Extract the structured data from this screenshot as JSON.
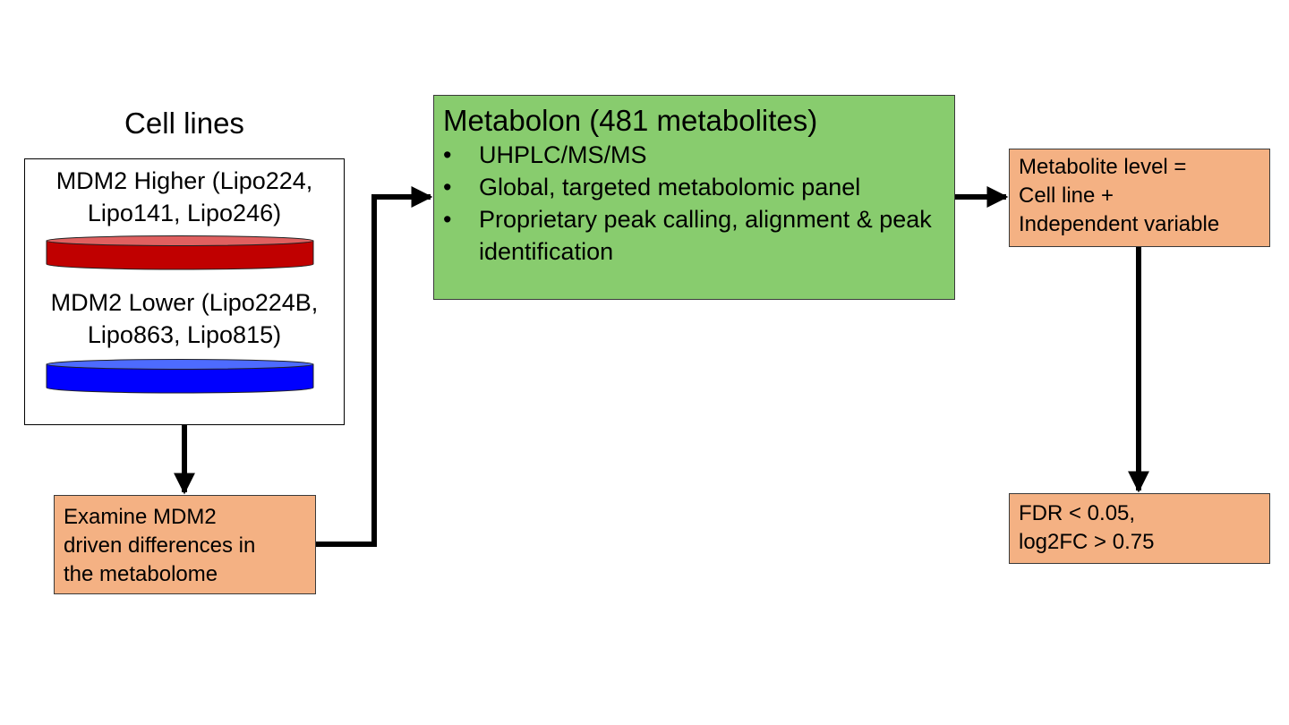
{
  "cell_lines": {
    "title": "Cell lines",
    "higher_label": "MDM2 Higher (Lipo224,\nLipo141, Lipo246)",
    "lower_label": "MDM2 Lower (Lipo224B,\nLipo863, Lipo815)",
    "higher_color": "#c00000",
    "lower_color": "#0000ff"
  },
  "examine": {
    "text": "Examine MDM2\ndriven differences in\nthe metabolome"
  },
  "metabolon": {
    "title": "Metabolon (481 metabolites)",
    "bullet": "•",
    "items": [
      "UHPLC/MS/MS",
      "Global, targeted metabolomic panel",
      "Proprietary peak calling, alignment & peak identification"
    ],
    "fill_color": "#88cc6e"
  },
  "metabolite_level": {
    "text": "Metabolite level =\nCell line +\nIndependent variable"
  },
  "fdr": {
    "text": "FDR < 0.05,\nlog2FC > 0.75"
  },
  "box_fill_color": "#f4b183"
}
